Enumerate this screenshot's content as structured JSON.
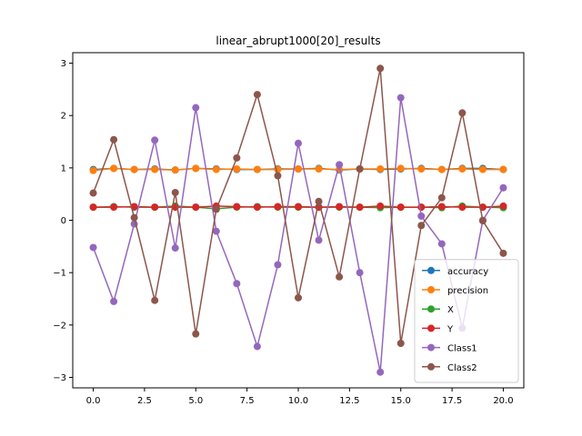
{
  "chart_data": {
    "type": "line",
    "title": "linear_abrupt1000[20]_results",
    "xlabel": "",
    "ylabel": "",
    "xlim": [
      -1.0,
      21.0
    ],
    "ylim": [
      -3.2,
      3.2
    ],
    "xticks": [
      0,
      2.5,
      5,
      7.5,
      10,
      12.5,
      15,
      17.5,
      20
    ],
    "xtick_labels": [
      "0.0",
      "2.5",
      "5.0",
      "7.5",
      "10.0",
      "12.5",
      "15.0",
      "17.5",
      "20.0"
    ],
    "yticks": [
      -3,
      -2,
      -1,
      0,
      1,
      2,
      3
    ],
    "ytick_labels": [
      "−3",
      "−2",
      "−1",
      "0",
      "1",
      "2",
      "3"
    ],
    "grid": false,
    "legend_position": "lower-right",
    "x": [
      0,
      1,
      2,
      3,
      4,
      5,
      6,
      7,
      8,
      9,
      10,
      11,
      12,
      13,
      14,
      15,
      16,
      17,
      18,
      19,
      20
    ],
    "series": [
      {
        "name": "accuracy",
        "color": "#1f77b4",
        "values": [
          0.97,
          0.99,
          0.97,
          0.98,
          0.96,
          0.99,
          0.98,
          0.97,
          0.97,
          0.98,
          0.98,
          0.99,
          0.96,
          0.98,
          0.97,
          0.98,
          0.99,
          0.97,
          0.99,
          0.99,
          0.97
        ]
      },
      {
        "name": "precision",
        "color": "#ff7f0e",
        "values": [
          0.95,
          0.99,
          0.97,
          0.97,
          0.96,
          0.99,
          0.97,
          0.98,
          0.97,
          0.97,
          0.98,
          0.98,
          0.97,
          0.98,
          0.98,
          0.99,
          0.98,
          0.97,
          0.98,
          0.97,
          0.97
        ]
      },
      {
        "name": "X",
        "color": "#2ca02c",
        "values": [
          0.25,
          0.26,
          0.25,
          0.25,
          0.27,
          0.25,
          0.22,
          0.25,
          0.26,
          0.25,
          0.25,
          0.25,
          0.25,
          0.25,
          0.24,
          0.25,
          0.25,
          0.24,
          0.27,
          0.25,
          0.24
        ]
      },
      {
        "name": "Y",
        "color": "#d62728",
        "values": [
          0.25,
          0.25,
          0.26,
          0.25,
          0.25,
          0.25,
          0.27,
          0.26,
          0.25,
          0.26,
          0.26,
          0.25,
          0.26,
          0.25,
          0.27,
          0.25,
          0.25,
          0.26,
          0.25,
          0.25,
          0.27
        ]
      },
      {
        "name": "Class1",
        "color": "#9467bd",
        "values": [
          -0.52,
          -1.55,
          -0.07,
          1.53,
          -0.53,
          2.15,
          -0.21,
          -1.21,
          -2.41,
          -0.85,
          1.47,
          -0.38,
          1.06,
          -1.0,
          -2.9,
          2.34,
          0.08,
          -0.45,
          -2.06,
          0.0,
          0.62
        ]
      },
      {
        "name": "Class2",
        "color": "#8c564b",
        "values": [
          0.52,
          1.54,
          0.05,
          -1.53,
          0.53,
          -2.17,
          0.21,
          1.19,
          2.4,
          0.85,
          -1.48,
          0.36,
          -1.08,
          0.98,
          2.9,
          -2.35,
          -0.1,
          0.43,
          2.05,
          -0.01,
          -0.63
        ]
      }
    ]
  }
}
